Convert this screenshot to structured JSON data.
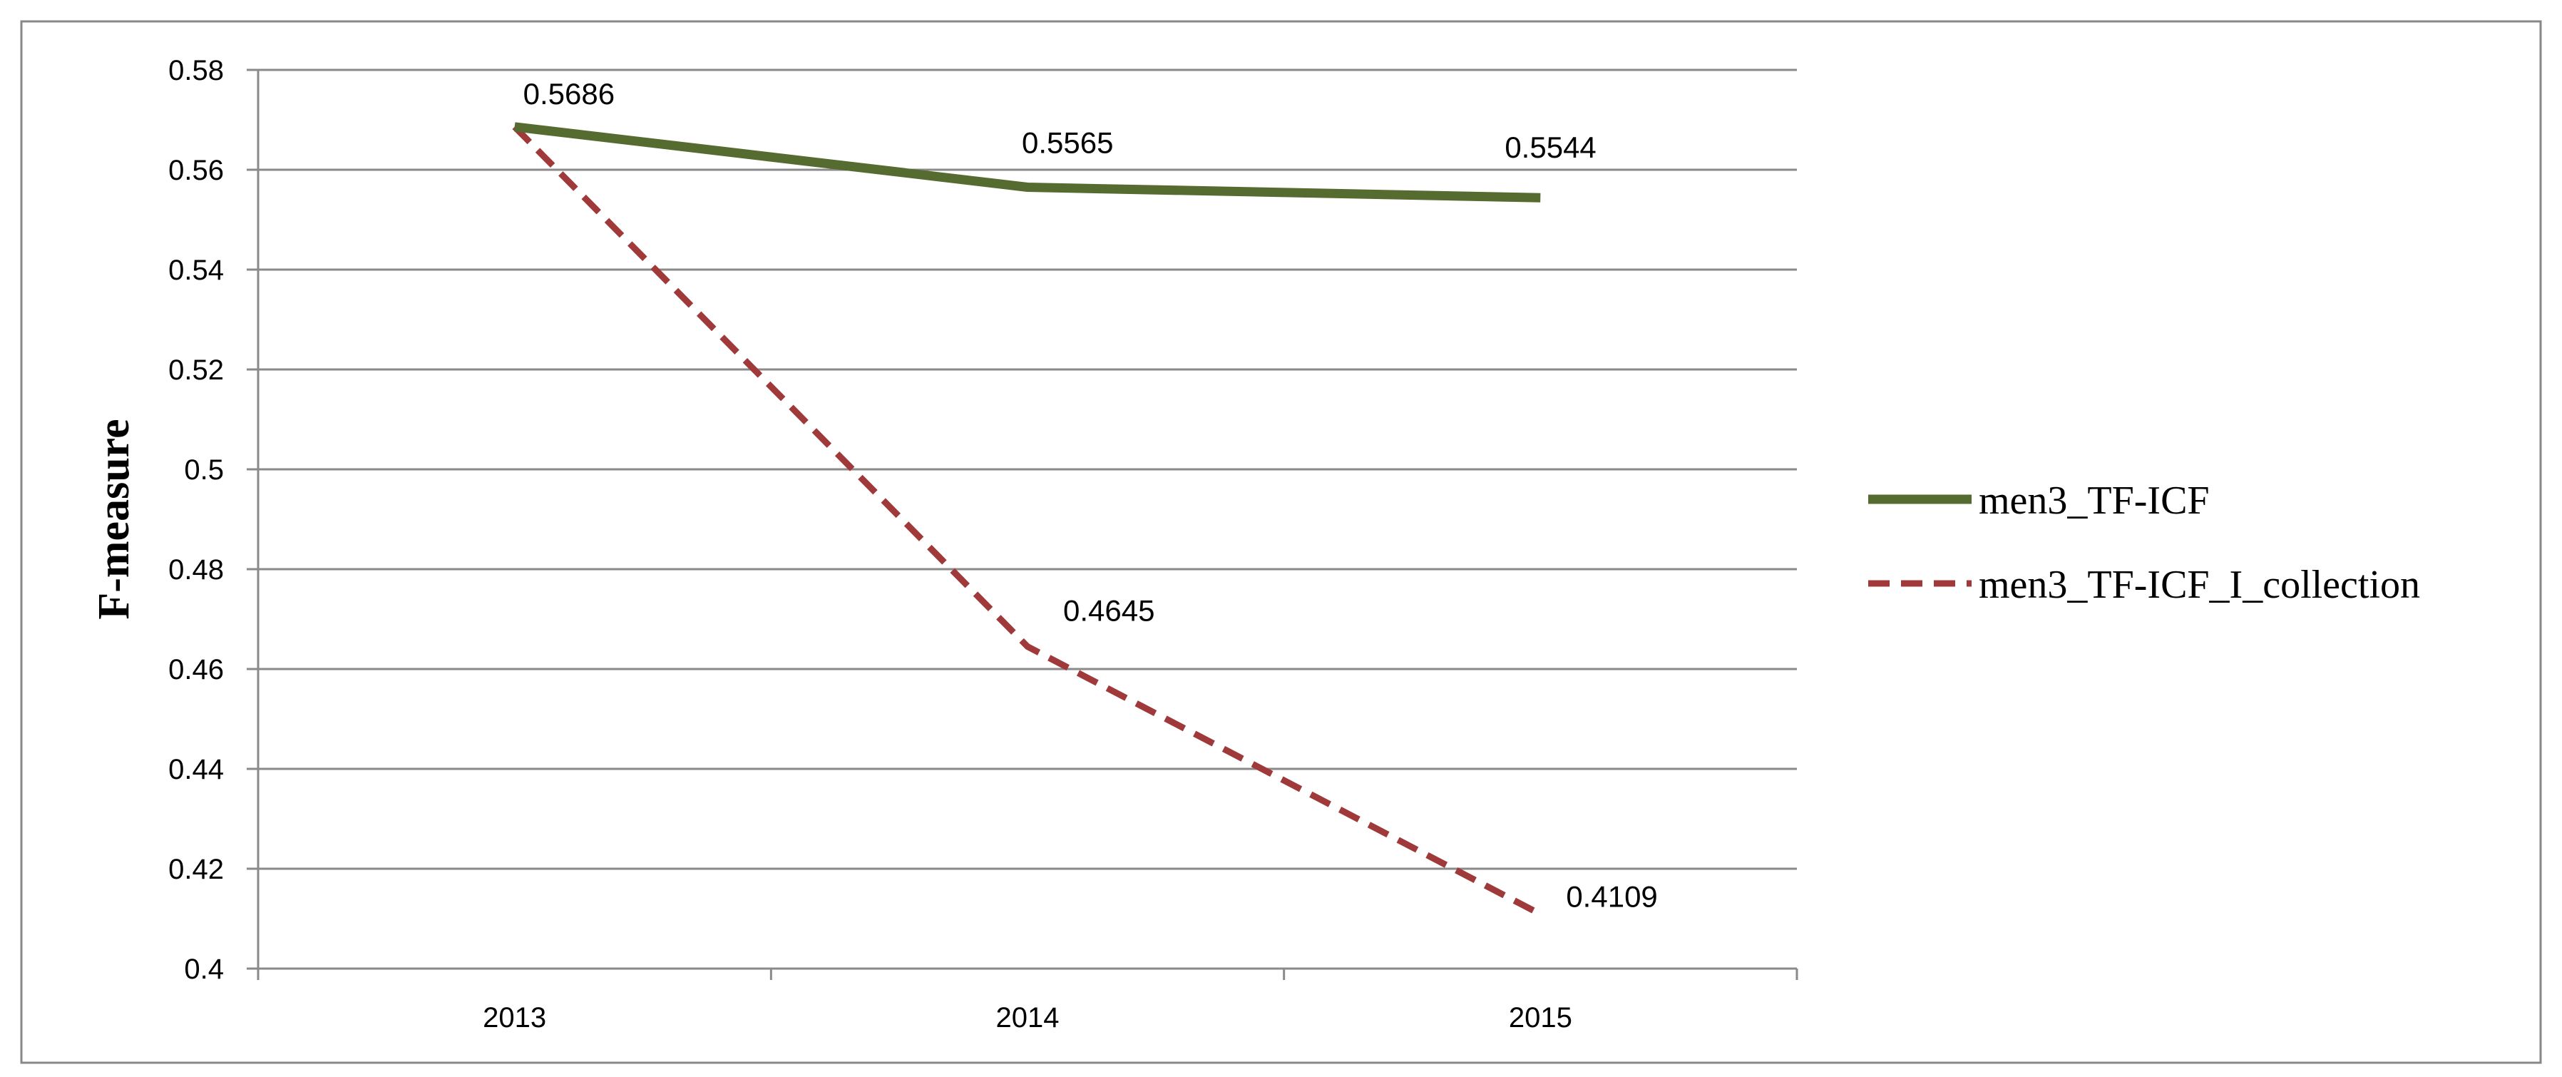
{
  "chart_data": {
    "type": "line",
    "title": "",
    "xlabel": "",
    "ylabel": "F-measure",
    "categories": [
      "2013",
      "2014",
      "2015"
    ],
    "ylim": [
      0.4,
      0.58
    ],
    "yticks": [
      "0.4",
      "0.42",
      "0.44",
      "0.46",
      "0.48",
      "0.5",
      "0.52",
      "0.54",
      "0.56",
      "0.58"
    ],
    "grid": true,
    "legend_position": "right",
    "series": [
      {
        "name": "men3_TF-ICF",
        "values": [
          0.5686,
          0.5565,
          0.5544
        ],
        "labels": [
          "0.5686",
          "0.5565",
          "0.5544"
        ],
        "color": "#556b2f",
        "style": "solid"
      },
      {
        "name": "men3_TF-ICF_I_collection",
        "values": [
          0.5686,
          0.4645,
          0.4109
        ],
        "labels": [
          "",
          "0.4645",
          "0.4109"
        ],
        "color": "#a0393a",
        "style": "dashed"
      }
    ]
  }
}
